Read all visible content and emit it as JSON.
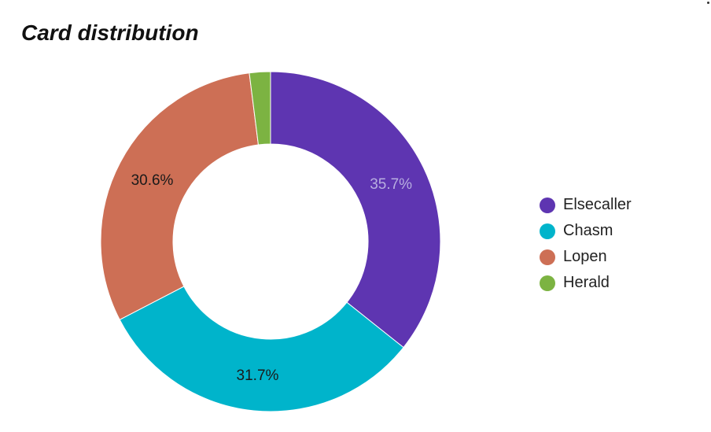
{
  "title": "Card distribution",
  "chart_data": {
    "type": "pie",
    "title": "Card distribution",
    "donut": true,
    "legend_position": "right",
    "slices": [
      {
        "label": "Elsecaller",
        "value": 35.7,
        "value_label": "35.7%",
        "color": "#5e35b1"
      },
      {
        "label": "Chasm",
        "value": 31.7,
        "value_label": "31.7%",
        "color": "#00b4cb"
      },
      {
        "label": "Lopen",
        "value": 30.6,
        "value_label": "30.6%",
        "color": "#cd6f55"
      },
      {
        "label": "Herald",
        "value": 2.0,
        "value_label": "",
        "color": "#7cb342"
      }
    ]
  },
  "label_colors": {
    "Elsecaller": "#b8aee0",
    "Chasm": "#1a1a1a",
    "Lopen": "#1a1a1a",
    "Herald": "#1a1a1a"
  }
}
